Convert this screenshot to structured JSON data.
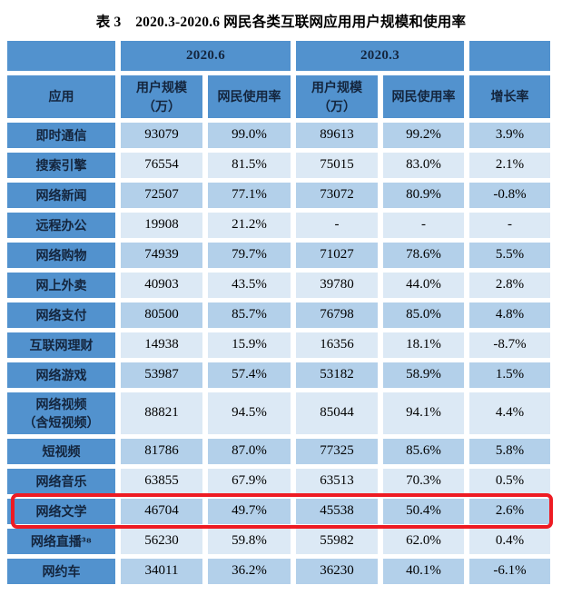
{
  "chart_data": {
    "type": "table",
    "title": "表 3　2020.3-2020.6 网民各类互联网应用用户规模和使用率",
    "period_headers": [
      "2020.6",
      "2020.3"
    ],
    "sub_headers": [
      "应用",
      "用户规模\n（万）",
      "网民使用率",
      "用户规模\n（万）",
      "网民使用率",
      "增长率"
    ],
    "rows": [
      [
        "即时通信",
        "93079",
        "99.0%",
        "89613",
        "99.2%",
        "3.9%"
      ],
      [
        "搜索引擎",
        "76554",
        "81.5%",
        "75015",
        "83.0%",
        "2.1%"
      ],
      [
        "网络新闻",
        "72507",
        "77.1%",
        "73072",
        "80.9%",
        "-0.8%"
      ],
      [
        "远程办公",
        "19908",
        "21.2%",
        "-",
        "-",
        "-"
      ],
      [
        "网络购物",
        "74939",
        "79.7%",
        "71027",
        "78.6%",
        "5.5%"
      ],
      [
        "网上外卖",
        "40903",
        "43.5%",
        "39780",
        "44.0%",
        "2.8%"
      ],
      [
        "网络支付",
        "80500",
        "85.7%",
        "76798",
        "85.0%",
        "4.8%"
      ],
      [
        "互联网理财",
        "14938",
        "15.9%",
        "16356",
        "18.1%",
        "-8.7%"
      ],
      [
        "网络游戏",
        "53987",
        "57.4%",
        "53182",
        "58.9%",
        "1.5%"
      ],
      [
        "网络视频\n（含短视频）",
        "88821",
        "94.5%",
        "85044",
        "94.1%",
        "4.4%"
      ],
      [
        "短视频",
        "81786",
        "87.0%",
        "77325",
        "85.6%",
        "5.8%"
      ],
      [
        "网络音乐",
        "63855",
        "67.9%",
        "63513",
        "70.3%",
        "0.5%"
      ],
      [
        "网络文学",
        "46704",
        "49.7%",
        "45538",
        "50.4%",
        "2.6%"
      ],
      [
        "网络直播³⁸",
        "56230",
        "59.8%",
        "55982",
        "62.0%",
        "0.4%"
      ],
      [
        "网约车",
        "34011",
        "36.2%",
        "36230",
        "40.1%",
        "-6.1%"
      ]
    ],
    "layout": {
      "tall_row_index": 9,
      "row_shading": "even rows medium blue, odd rows light blue"
    },
    "highlight": {
      "row_label": "网络文学",
      "row_index": 12,
      "style": "red rounded rectangle outline"
    }
  },
  "colors": {
    "header_bg": "#5292ce",
    "row_alt_dark": "#b3d0ea",
    "row_alt_light": "#dce9f5",
    "header_text": "#14253d",
    "data_text": "#000000",
    "highlight_border": "#ee1b23",
    "gridline": "#ffffff"
  }
}
